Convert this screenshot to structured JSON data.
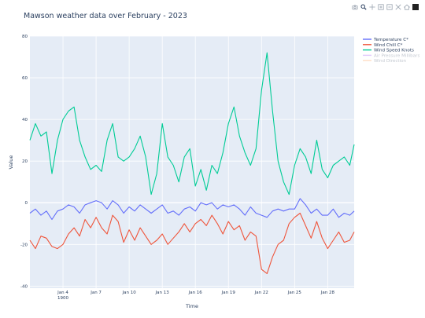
{
  "chart_data": {
    "type": "line",
    "title": "Mawson weather data over February - 2023",
    "xlabel": "Time",
    "ylabel": "Value",
    "ylim": [
      -41,
      80
    ],
    "xlim": [
      1.0,
      30.4
    ],
    "y_ticks": [
      -40,
      -20,
      0,
      20,
      40,
      60,
      80
    ],
    "x_ticks": [
      {
        "label": "Jan 4",
        "sub": "1900",
        "day": 4
      },
      {
        "label": "Jan 7",
        "day": 7
      },
      {
        "label": "Jan 10",
        "day": 10
      },
      {
        "label": "Jan 13",
        "day": 13
      },
      {
        "label": "Jan 16",
        "day": 16
      },
      {
        "label": "Jan 19",
        "day": 19
      },
      {
        "label": "Jan 22",
        "day": 22
      },
      {
        "label": "Jan 25",
        "day": 25
      },
      {
        "label": "Jan 28",
        "day": 28
      }
    ],
    "grid": true,
    "legend_position": "top-right",
    "series": [
      {
        "name": "Temperature C*",
        "color": "#636efa",
        "visible": true,
        "x": [
          1,
          1.5,
          2,
          2.5,
          3,
          3.5,
          4,
          4.5,
          5,
          5.5,
          6,
          6.5,
          7,
          7.5,
          8,
          8.5,
          9,
          9.5,
          10,
          10.5,
          11,
          11.5,
          12,
          12.5,
          13,
          13.5,
          14,
          14.5,
          15,
          15.5,
          16,
          16.5,
          17,
          17.5,
          18,
          18.5,
          19,
          19.5,
          20,
          20.5,
          21,
          21.5,
          22,
          22.5,
          23,
          23.5,
          24,
          24.5,
          25,
          25.5,
          26,
          26.5,
          27,
          27.5,
          28,
          28.5,
          29,
          29.5,
          30,
          30.4
        ],
        "y": [
          -5,
          -3,
          -6,
          -4,
          -8,
          -4,
          -3,
          -1,
          -2,
          -5,
          -1,
          0,
          1,
          0,
          -3,
          1,
          -1,
          -5,
          -2,
          -4,
          -1,
          -3,
          -5,
          -3,
          -1,
          -5,
          -4,
          -6,
          -3,
          -2,
          -4,
          0,
          -1,
          0,
          -3,
          -1,
          -2,
          -1,
          -3,
          -6,
          -2,
          -5,
          -6,
          -7,
          -4,
          -3,
          -4,
          -3,
          -3,
          2,
          -1,
          -5,
          -3,
          -6,
          -6,
          -3,
          -7,
          -5,
          -6,
          -4
        ]
      },
      {
        "name": "Wind Chill C*",
        "color": "#ef553b",
        "visible": true,
        "x": [
          1,
          1.5,
          2,
          2.5,
          3,
          3.5,
          4,
          4.5,
          5,
          5.5,
          6,
          6.5,
          7,
          7.5,
          8,
          8.5,
          9,
          9.5,
          10,
          10.5,
          11,
          11.5,
          12,
          12.5,
          13,
          13.5,
          14,
          14.5,
          15,
          15.5,
          16,
          16.5,
          17,
          17.5,
          18,
          18.5,
          19,
          19.5,
          20,
          20.5,
          21,
          21.5,
          22,
          22.5,
          23,
          23.5,
          24,
          24.5,
          25,
          25.5,
          26,
          26.5,
          27,
          27.5,
          28,
          28.5,
          29,
          29.5,
          30,
          30.4
        ],
        "y": [
          -18,
          -22,
          -16,
          -17,
          -21,
          -22,
          -20,
          -15,
          -12,
          -16,
          -8,
          -12,
          -7,
          -12,
          -15,
          -6,
          -9,
          -19,
          -13,
          -18,
          -12,
          -16,
          -20,
          -18,
          -15,
          -20,
          -17,
          -14,
          -10,
          -14,
          -10,
          -8,
          -11,
          -6,
          -10,
          -15,
          -9,
          -13,
          -11,
          -18,
          -14,
          -16,
          -32,
          -34,
          -26,
          -20,
          -18,
          -10,
          -7,
          -5,
          -11,
          -17,
          -9,
          -17,
          -22,
          -18,
          -14,
          -19,
          -18,
          -14
        ]
      },
      {
        "name": "Wind Speed Knots",
        "color": "#00cc96",
        "visible": true,
        "x": [
          1,
          1.5,
          2,
          2.5,
          3,
          3.5,
          4,
          4.5,
          5,
          5.5,
          6,
          6.5,
          7,
          7.5,
          8,
          8.5,
          9,
          9.5,
          10,
          10.5,
          11,
          11.5,
          12,
          12.5,
          13,
          13.5,
          14,
          14.5,
          15,
          15.5,
          16,
          16.5,
          17,
          17.5,
          18,
          18.5,
          19,
          19.5,
          20,
          20.5,
          21,
          21.5,
          22,
          22.5,
          23,
          23.5,
          24,
          24.5,
          25,
          25.5,
          26,
          26.5,
          27,
          27.5,
          28,
          28.5,
          29,
          29.5,
          30,
          30.4
        ],
        "y": [
          30,
          38,
          32,
          34,
          14,
          30,
          40,
          44,
          46,
          30,
          22,
          16,
          18,
          15,
          30,
          38,
          22,
          20,
          22,
          26,
          32,
          22,
          4,
          14,
          38,
          22,
          18,
          10,
          22,
          26,
          8,
          16,
          6,
          18,
          14,
          24,
          38,
          46,
          32,
          24,
          18,
          26,
          54,
          72,
          44,
          20,
          10,
          4,
          18,
          26,
          22,
          14,
          30,
          16,
          12,
          18,
          20,
          22,
          18,
          28
        ]
      },
      {
        "name": "Air Pressure Millibars",
        "color": "#ab63fa",
        "visible": false
      },
      {
        "name": "Wind Direction",
        "color": "#ffa15a",
        "visible": false
      }
    ]
  },
  "toolbar": {
    "buttons": [
      {
        "name": "camera-icon"
      },
      {
        "name": "zoom-icon"
      },
      {
        "name": "pan-icon"
      },
      {
        "name": "zoom-in-icon"
      },
      {
        "name": "zoom-out-icon"
      },
      {
        "name": "autoscale-icon"
      },
      {
        "name": "home-icon"
      }
    ]
  }
}
